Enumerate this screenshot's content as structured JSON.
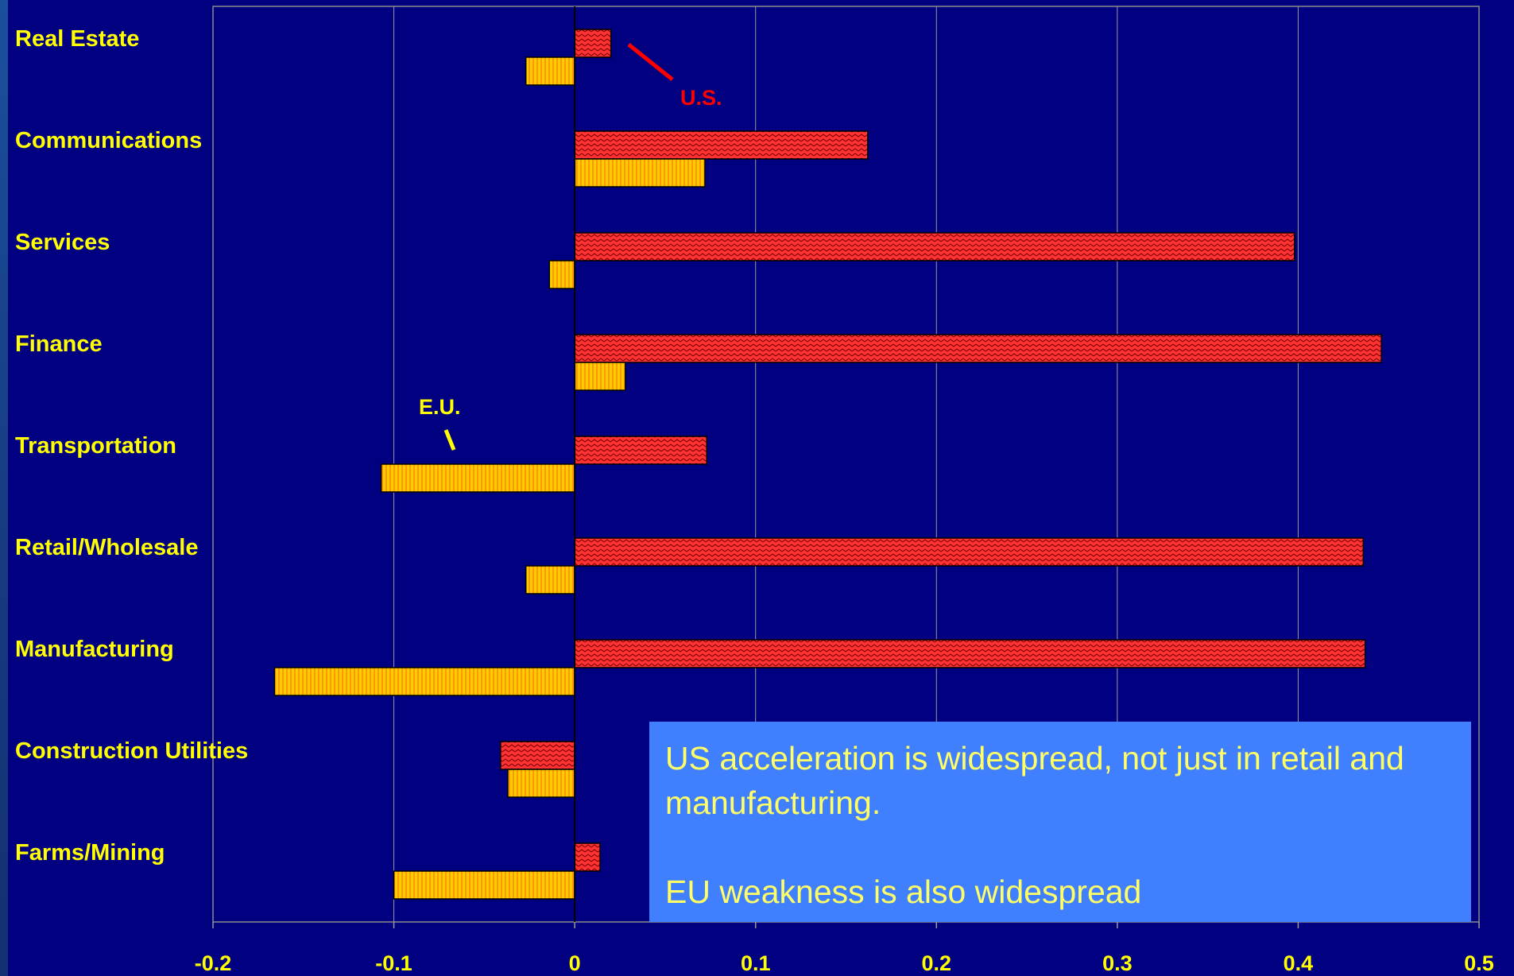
{
  "chart_data": {
    "type": "bar",
    "orientation": "horizontal",
    "categories": [
      "Real Estate",
      "Communications",
      "Services",
      "Finance",
      "Transportation",
      "Retail/Wholesale",
      "Manufacturing",
      "Construction Utilities",
      "Farms/Mining"
    ],
    "series": [
      {
        "name": "U.S.",
        "values": [
          0.02,
          0.162,
          0.398,
          0.446,
          0.073,
          0.436,
          0.437,
          -0.041,
          0.014
        ]
      },
      {
        "name": "E.U.",
        "values": [
          -0.027,
          0.072,
          -0.014,
          0.028,
          -0.107,
          -0.027,
          -0.166,
          -0.037,
          -0.1
        ]
      }
    ],
    "xlim": [
      -0.2,
      0.5
    ],
    "xticks": [
      "-0.2",
      "-0.1",
      "0",
      "0.1",
      "0.2",
      "0.3",
      "0.4",
      "0.5"
    ],
    "grid": "vertical",
    "title": "",
    "xlabel": "",
    "ylabel": ""
  },
  "annotations": {
    "us_label": "U.S.",
    "eu_label": "E.U."
  },
  "note": {
    "line1": "US acceleration is widespread, not just in retail and manufacturing.",
    "line2": "EU weakness is also widespread"
  },
  "colors": {
    "background": "#000080",
    "us_bar": "#ff3333",
    "eu_bar": "#ffcc00",
    "labels": "#ffff00",
    "note_box": "#4080ff",
    "note_text": "#ffff66"
  }
}
